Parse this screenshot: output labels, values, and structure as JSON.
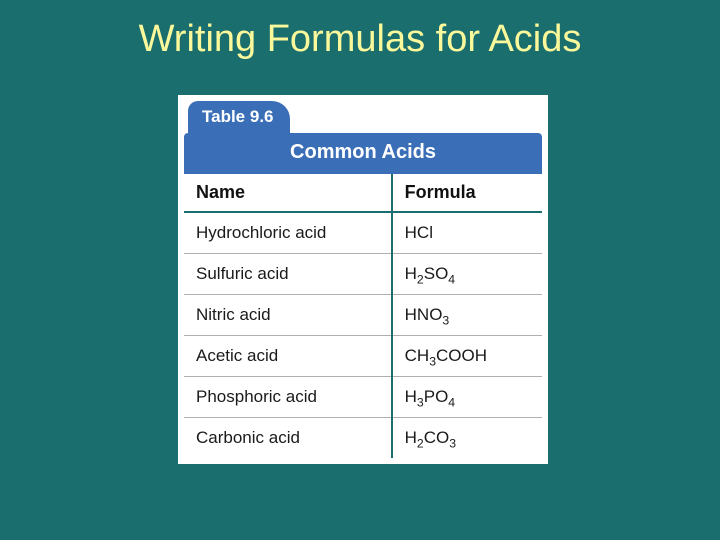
{
  "slide": {
    "title": "Writing Formulas for Acids",
    "title_color": "#faf89b",
    "background_color": "#1a6e6e",
    "title_fontsize": 38
  },
  "table": {
    "tab_label": "Table 9.6",
    "caption": "Common Acids",
    "header_bg": "#3a6fb7",
    "header_text_color": "#ffffff",
    "border_color": "#1a6e6e",
    "row_divider_color": "#b0b0b0",
    "cell_bg": "#ffffff",
    "name_fontsize": 17,
    "header_fontsize": 18,
    "columns": [
      "Name",
      "Formula"
    ],
    "rows": [
      {
        "name": "Hydrochloric acid",
        "formula_tokens": [
          [
            "t",
            "HCl"
          ]
        ]
      },
      {
        "name": "Sulfuric acid",
        "formula_tokens": [
          [
            "t",
            "H"
          ],
          [
            "s",
            "2"
          ],
          [
            "t",
            "SO"
          ],
          [
            "s",
            "4"
          ]
        ]
      },
      {
        "name": "Nitric acid",
        "formula_tokens": [
          [
            "t",
            "HNO"
          ],
          [
            "s",
            "3"
          ]
        ]
      },
      {
        "name": "Acetic acid",
        "formula_tokens": [
          [
            "t",
            "CH"
          ],
          [
            "s",
            "3"
          ],
          [
            "t",
            "COOH"
          ]
        ]
      },
      {
        "name": "Phosphoric acid",
        "formula_tokens": [
          [
            "t",
            "H"
          ],
          [
            "s",
            "3"
          ],
          [
            "t",
            "PO"
          ],
          [
            "s",
            "4"
          ]
        ]
      },
      {
        "name": "Carbonic acid",
        "formula_tokens": [
          [
            "t",
            "H"
          ],
          [
            "s",
            "2"
          ],
          [
            "t",
            "CO"
          ],
          [
            "s",
            "3"
          ]
        ]
      }
    ]
  }
}
